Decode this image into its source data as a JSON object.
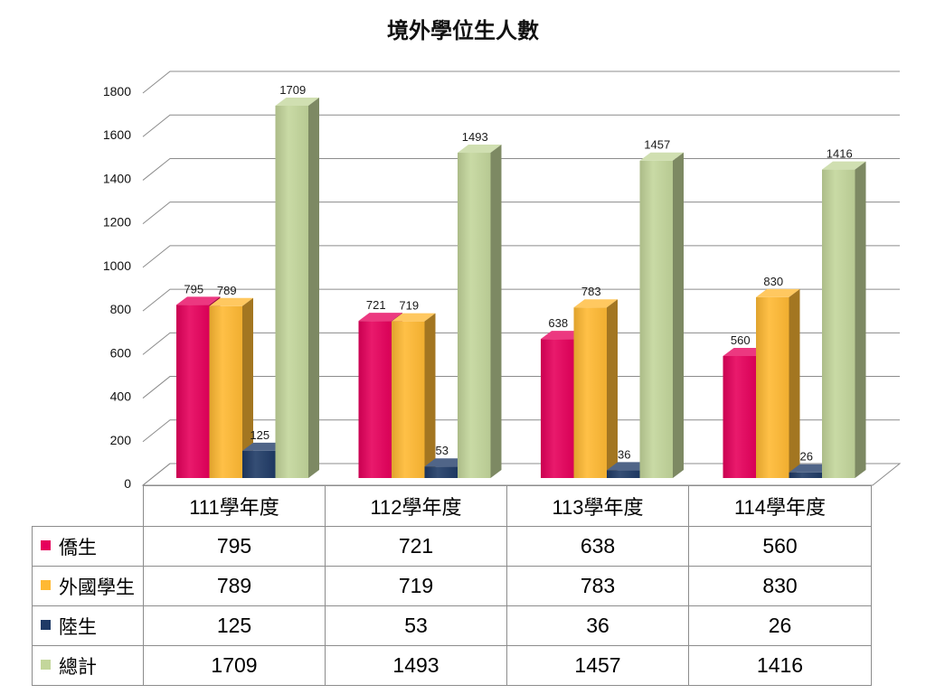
{
  "chart_data": {
    "type": "bar",
    "three_d": true,
    "title": "境外學位生人數",
    "categories": [
      "111學年度",
      "112學年度",
      "113學年度",
      "114學年度"
    ],
    "series": [
      {
        "name": "僑生",
        "values": [
          795,
          721,
          638,
          560
        ],
        "color": "#E6005C"
      },
      {
        "name": "外國學生",
        "values": [
          789,
          719,
          783,
          830
        ],
        "color": "#FFB933"
      },
      {
        "name": "陸生",
        "values": [
          125,
          53,
          36,
          26
        ],
        "color": "#1F3A66"
      },
      {
        "name": "總計",
        "values": [
          1709,
          1493,
          1457,
          1416
        ],
        "color": "#C3D69B"
      }
    ],
    "ylim": [
      0,
      1800
    ],
    "yticks": [
      0,
      200,
      400,
      600,
      800,
      1000,
      1200,
      1400,
      1600,
      1800
    ],
    "grid": true,
    "data_labels": true,
    "legend": "bottom"
  }
}
